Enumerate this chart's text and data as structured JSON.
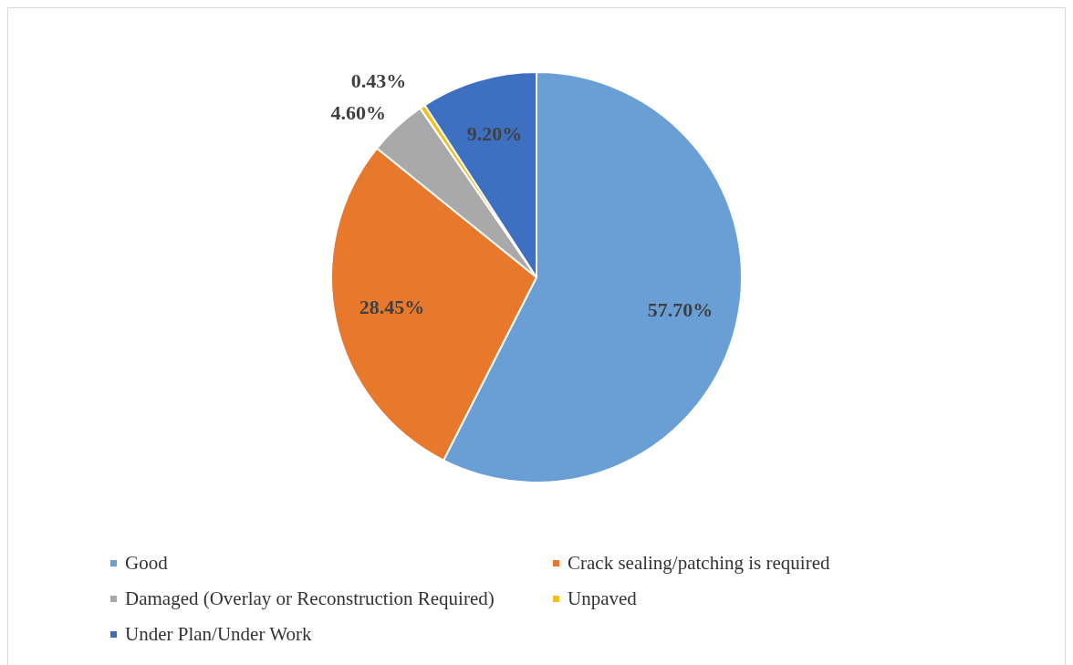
{
  "chart_data": {
    "type": "pie",
    "categories": [
      "Good",
      "Crack sealing/patching is required",
      "Damaged (Overlay or Reconstruction Required)",
      "Unpaved",
      "Under Plan/Under Work"
    ],
    "values": [
      57.7,
      28.45,
      4.6,
      0.43,
      9.2
    ],
    "colors": [
      "#6a9fd6",
      "#e8782c",
      "#a9a9a9",
      "#f2c01e",
      "#3d70c0"
    ],
    "value_labels": [
      "57.70%",
      "28.45%",
      "4.60%",
      "0.43%",
      "9.20%"
    ],
    "legend": "bottom"
  }
}
